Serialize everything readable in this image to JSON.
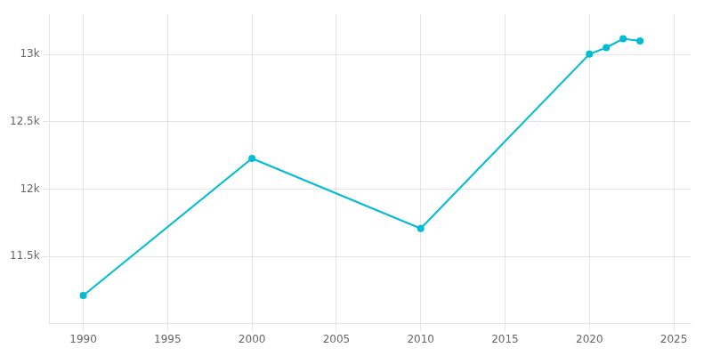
{
  "chart_data": {
    "type": "line",
    "x": [
      1990,
      2000,
      2010,
      2020,
      2021,
      2022,
      2023
    ],
    "values": [
      11209,
      12228,
      11707,
      13004,
      13052,
      13118,
      13101
    ],
    "color": "#00BCD4",
    "marker": "circle",
    "xlim": [
      1988,
      2026
    ],
    "xticks": [
      1990,
      1995,
      2000,
      2005,
      2010,
      2015,
      2020,
      2025
    ],
    "ylim": [
      11000,
      13300
    ],
    "yticks": [
      {
        "value": 11500,
        "label": "11.5k"
      },
      {
        "value": 12000,
        "label": "12k"
      },
      {
        "value": 12500,
        "label": "12.5k"
      },
      {
        "value": 13000,
        "label": "13k"
      }
    ],
    "grid": true
  }
}
